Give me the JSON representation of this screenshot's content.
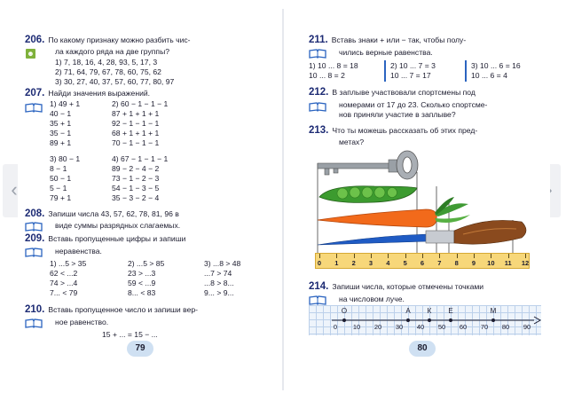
{
  "left_page": {
    "page_number": "79",
    "ex206": {
      "num": "206.",
      "text1": "По какому признаку можно разбить чис-",
      "text2": "ла каждого ряда на две группы?",
      "row1": "1) 7,  18,  16,  4,  28,  93,  5,  17,  3",
      "row2": "2) 71,  64,  79,  67,  78,  60,  75,  62",
      "row3": "3) 30,  27,  40,  37,  57,  60,  77,  80,  97"
    },
    "ex207": {
      "num": "207.",
      "text": "Найди значения выражений.",
      "col1": [
        "1) 49 + 1",
        "    40 − 1",
        "    35 + 1",
        "    35 − 1",
        "    89 + 1"
      ],
      "col2": [
        "2) 60 − 1 − 1 − 1",
        "    87 + 1 + 1 + 1",
        "    92 − 1 − 1 − 1",
        "    68 + 1 + 1 + 1",
        "    70 − 1 − 1 − 1"
      ],
      "col3": [
        "3) 80 − 1",
        "    8 − 1",
        "    50 − 1",
        "    5 − 1",
        "    79 + 1"
      ],
      "col4": [
        "4) 67 − 1 − 1 − 1",
        "    89 − 2 − 4 − 2",
        "    73 − 1 − 2 − 3",
        "    54 − 1 − 3 − 5",
        "    35 − 3 − 2 − 4"
      ]
    },
    "ex208": {
      "num": "208.",
      "text1": "Запиши числа  43,  57,  62,  78,  81,  96  в",
      "text2": "виде суммы разрядных слагаемых."
    },
    "ex209": {
      "num": "209.",
      "text1": "Вставь  пропущенные  цифры  и  запиши",
      "text2": "неравенства.",
      "col1": [
        "1) ...5 > 35",
        "    62 < ...2",
        "    74 > ...4",
        "    7... < 79"
      ],
      "col2": [
        "2) ...5 > 85",
        "    23 > ...3",
        "    59 < ...9",
        "    8... < 83"
      ],
      "col3": [
        "3) ...8 > 48",
        "    ...7 > 74",
        "    ...8 > 8...",
        "    9... > 9..."
      ]
    },
    "ex210": {
      "num": "210.",
      "text1": "Вставь  пропущенное  число  и  запиши  вер-",
      "text2": "ное равенство.",
      "equation": "15 + ... = 15 − ..."
    }
  },
  "right_page": {
    "page_number": "80",
    "ex211": {
      "num": "211.",
      "text1": "Вставь  знаки  +  или  −  так,  чтобы  полу-",
      "text2": "чились верные равенства.",
      "g1": [
        "1) 10 ... 8 = 18",
        "    10 ... 8 = 2"
      ],
      "g2": [
        "2) 10 ... 7 = 3",
        "    10 ... 7 = 17"
      ],
      "g3": [
        "3) 10 ... 6 = 16",
        "    10 ... 6 = 4"
      ]
    },
    "ex212": {
      "num": "212.",
      "text1": "В  заплыве  участвовали  спортсмены  под",
      "text2": "номерами  от  17  до  23.  Сколько  спортсме-",
      "text3": "нов приняли участие в заплыве?"
    },
    "ex213": {
      "num": "213.",
      "text1": "Что  ты  можешь  рассказать  об  этих  пред-",
      "text2": "метах?",
      "ruler_labels": [
        "0",
        "1",
        "2",
        "3",
        "4",
        "5",
        "6",
        "7",
        "8",
        "9",
        "10",
        "11",
        "12"
      ]
    },
    "ex214": {
      "num": "214.",
      "text1": "Запиши  числа,  которые  отмечены  точками",
      "text2": "на числовом луче.",
      "letters": [
        "О",
        "А",
        "К",
        "Е",
        "М"
      ],
      "numbers": [
        "0",
        "10",
        "20",
        "30",
        "40",
        "50",
        "60",
        "70",
        "80",
        "90"
      ]
    }
  },
  "nav": {
    "prev": "‹",
    "next": "›"
  },
  "colors": {
    "heading": "#1d2b74",
    "accent_blue": "#2b64c0",
    "badge_green": "#7fb13b",
    "page_badge": "#cfe0f2"
  },
  "icons": [
    "book-icon",
    "person-badge-icon",
    "chevron-left-icon",
    "chevron-right-icon",
    "key-icon",
    "pea-pod-icon",
    "carrot-icon",
    "paintbrush-icon",
    "ruler-icon"
  ]
}
